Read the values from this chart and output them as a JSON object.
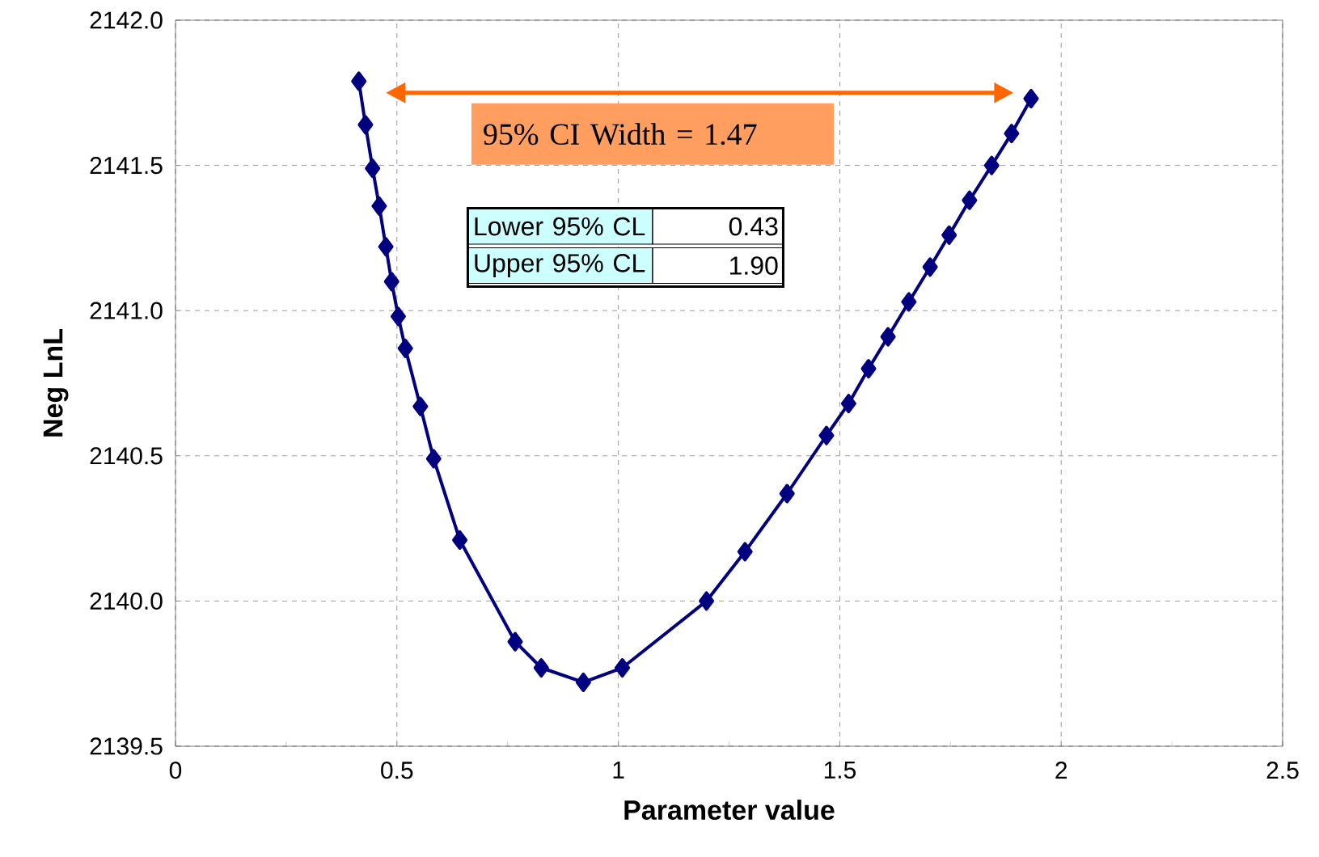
{
  "chart_data": {
    "type": "line",
    "xlabel": "Parameter value",
    "ylabel": "Neg LnL",
    "x": [
      0.414,
      0.429,
      0.445,
      0.46,
      0.475,
      0.488,
      0.503,
      0.519,
      0.553,
      0.583,
      0.642,
      0.767,
      0.826,
      0.921,
      1.009,
      1.199,
      1.286,
      1.381,
      1.47,
      1.52,
      1.565,
      1.609,
      1.656,
      1.704,
      1.747,
      1.793,
      1.843,
      1.888,
      1.932
    ],
    "series": [
      {
        "color": "#000080",
        "values": [
          2141.79,
          2141.64,
          2141.49,
          2141.36,
          2141.22,
          2141.1,
          2140.98,
          2140.87,
          2140.67,
          2140.49,
          2140.21,
          2139.86,
          2139.77,
          2139.72,
          2139.77,
          2140.0,
          2140.17,
          2140.37,
          2140.57,
          2140.68,
          2140.8,
          2140.91,
          2141.03,
          2141.15,
          2141.26,
          2141.38,
          2141.5,
          2141.61,
          2141.73
        ]
      }
    ],
    "xlim": [
      0,
      2.5
    ],
    "ylim": [
      2139.5,
      2142
    ],
    "xticks": [
      0,
      0.5,
      1,
      1.5,
      2,
      2.5
    ],
    "yticks": [
      2139.5,
      {
        "value": 2140,
        "label": "2140.0"
      },
      2140.5,
      {
        "value": 2141,
        "label": "2141.0"
      },
      2141.5,
      {
        "value": 2142,
        "label": "2142.0"
      }
    ],
    "grid": true,
    "marker": "diamond",
    "line_style": "solid",
    "annotations": [
      "95% CI Width = 1.47",
      "Lower 95% CL",
      "0.43",
      "Upper 95% CL",
      "1.90"
    ]
  }
}
